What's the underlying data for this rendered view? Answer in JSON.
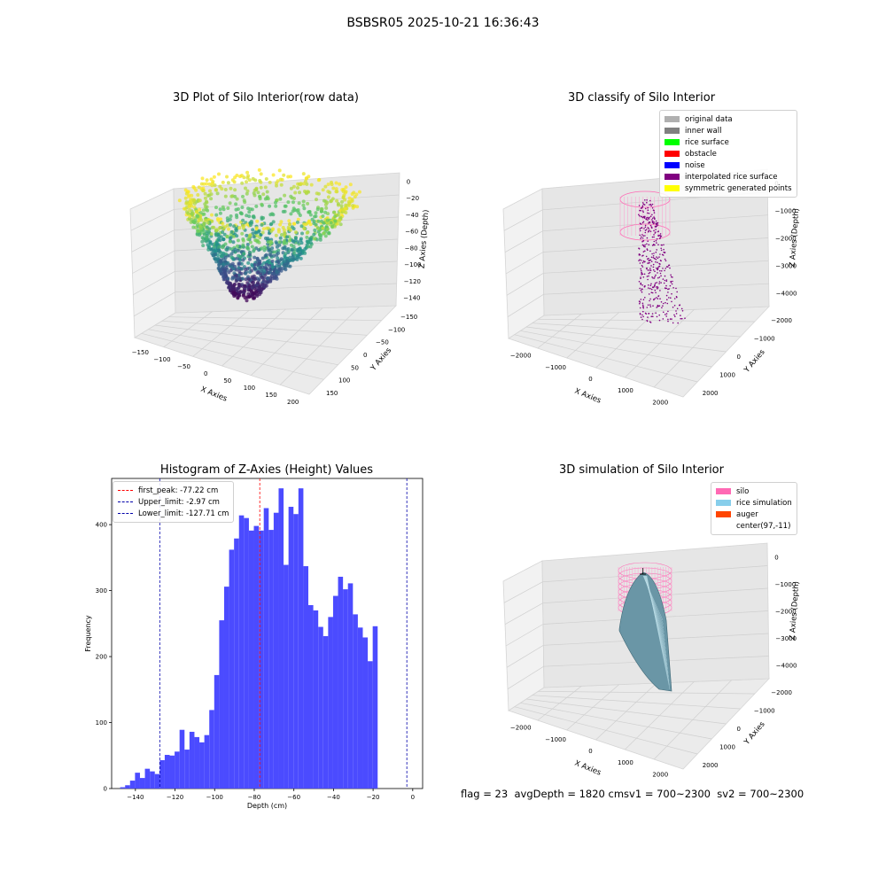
{
  "figure_title": "BSBSR05 2025-10-21 16:36:43",
  "footer": "flag = 23  avgDepth = 1820 cmsv1 = 700~2300  sv2 = 700~2300",
  "chart_data": [
    {
      "type": "scatter",
      "title": "3D Plot of Silo Interior(row data)",
      "xlabel": "X Axies",
      "ylabel": "Y Axies",
      "zlabel": "Z Axies (Depth)",
      "x_ticks": [
        "−150",
        "−100",
        "−50",
        "0",
        "50",
        "100",
        "150",
        "200"
      ],
      "y_ticks": [
        "150",
        "100",
        "50",
        "0",
        "−50",
        "−100",
        "−150"
      ],
      "z_ticks": [
        "0",
        "−20",
        "−40",
        "−60",
        "−80",
        "−100",
        "−120",
        "−140"
      ],
      "xlim": [
        -150,
        200
      ],
      "ylim": [
        -150,
        150
      ],
      "zlim": [
        -140,
        0
      ],
      "colormap": "viridis"
    },
    {
      "type": "scatter",
      "title": "3D classify of Silo Interior",
      "xlabel": "X Axies",
      "ylabel": "Y Axies",
      "zlabel": "Z Axies (Depth)",
      "x_ticks": [
        "−2000",
        "−1000",
        "0",
        "1000",
        "2000"
      ],
      "y_ticks": [
        "2000",
        "1000",
        "0",
        "−1000",
        "−2000"
      ],
      "z_ticks": [
        "0",
        "−1000",
        "−2000",
        "−3000",
        "−4000"
      ],
      "legend": [
        {
          "label": "original data",
          "color": "#b0b0b0"
        },
        {
          "label": "inner wall",
          "color": "#808080"
        },
        {
          "label": "rice surface",
          "color": "#00ff00"
        },
        {
          "label": "obstacle",
          "color": "#ff0000"
        },
        {
          "label": "noise",
          "color": "#0000ff"
        },
        {
          "label": "interpolated rice surface",
          "color": "#800080"
        },
        {
          "label": "symmetric generated points",
          "color": "#ffff00"
        }
      ]
    },
    {
      "type": "bar",
      "title": "Histogram of Z-Axies (Height) Values",
      "xlabel": "Depth (cm)",
      "ylabel": "Frequency",
      "xlim": [
        -152,
        5
      ],
      "ylim": [
        0,
        470
      ],
      "x_ticks": [
        -140,
        -120,
        -100,
        -80,
        -60,
        -40,
        -20,
        0
      ],
      "x_tick_labels": [
        "−140",
        "−120",
        "−100",
        "−80",
        "−60",
        "−40",
        "−20",
        "0"
      ],
      "y_ticks": [
        0,
        100,
        200,
        300,
        400
      ],
      "bar_color": "#4b4bff",
      "bin_start": -147.7,
      "bin_width": 2.5,
      "values": [
        2,
        5,
        12,
        24,
        16,
        30,
        26,
        22,
        43,
        51,
        50,
        56,
        89,
        59,
        86,
        78,
        70,
        81,
        119,
        172,
        255,
        306,
        362,
        379,
        414,
        410,
        391,
        398,
        391,
        425,
        392,
        418,
        455,
        339,
        427,
        416,
        455,
        337,
        278,
        270,
        245,
        231,
        260,
        292,
        321,
        302,
        311,
        264,
        244,
        229,
        193,
        246
      ],
      "vlines": [
        {
          "label": "first_peak: -77.22 cm",
          "x": -77.22,
          "color": "#ff0000"
        },
        {
          "label": "Upper_limit: -2.97 cm",
          "x": -2.97,
          "color": "#0000aa"
        },
        {
          "label": "Lower_limit: -127.71 cm",
          "x": -127.71,
          "color": "#0000aa"
        }
      ]
    },
    {
      "type": "surface",
      "title": "3D simulation of Silo Interior",
      "xlabel": "X Axies",
      "ylabel": "Y Axies",
      "zlabel": "Z Axies (Depth)",
      "x_ticks": [
        "−2000",
        "−1000",
        "0",
        "1000",
        "2000"
      ],
      "y_ticks": [
        "2000",
        "1000",
        "0",
        "−1000",
        "−2000"
      ],
      "z_ticks": [
        "0",
        "−1000",
        "−2000",
        "−3000",
        "−4000"
      ],
      "legend": [
        {
          "label": "silo",
          "color": "#ff69b4"
        },
        {
          "label": "rice simulation",
          "color": "#87ceeb"
        },
        {
          "label": "auger",
          "color": "#ff4500"
        },
        {
          "label": "center(97,-11)",
          "color": ""
        }
      ]
    }
  ]
}
